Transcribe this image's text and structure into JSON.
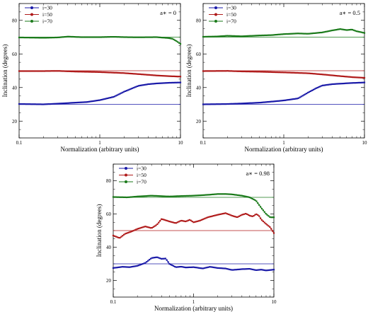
{
  "chart_data": [
    {
      "type": "line",
      "xscale": "log",
      "xlim": [
        0.1,
        10
      ],
      "ylim": [
        10,
        90
      ],
      "xticks": [
        "0.1",
        "1",
        "10"
      ],
      "yticks": [
        "20",
        "40",
        "60",
        "80"
      ],
      "xlabel": "Normalization (arbitrary units)",
      "ylabel": "Inclination (degrees)",
      "annotation": "a∗ = 0",
      "legend_position": "top-left",
      "series": [
        {
          "name": "i=30",
          "color": "#1a1aa8",
          "true_value": 30,
          "x": [
            0.1,
            0.2,
            0.3,
            0.5,
            0.7,
            1.0,
            1.5,
            2.0,
            3.0,
            4.0,
            5.0,
            7.0,
            10.0
          ],
          "y": [
            30.2,
            30.0,
            30.4,
            31.0,
            31.4,
            32.5,
            34.5,
            37.5,
            41.0,
            42.0,
            42.4,
            42.8,
            43.0
          ]
        },
        {
          "name": "i=50",
          "color": "#b01a1a",
          "true_value": 50,
          "x": [
            0.1,
            0.2,
            0.3,
            0.5,
            1.0,
            2.0,
            3.0,
            5.0,
            7.0,
            10.0
          ],
          "y": [
            49.8,
            49.8,
            49.9,
            49.5,
            49.2,
            48.6,
            48.0,
            47.2,
            46.8,
            46.5
          ]
        },
        {
          "name": "i=70",
          "color": "#1a7a1a",
          "true_value": 70,
          "x": [
            0.1,
            0.15,
            0.2,
            0.3,
            0.4,
            0.6,
            1.0,
            1.5,
            2.0,
            3.0,
            5.0,
            7.0,
            8.0,
            9.0,
            10.0
          ],
          "y": [
            69.8,
            69.7,
            69.6,
            69.8,
            70.3,
            70.0,
            70.0,
            70.2,
            70.0,
            69.9,
            70.0,
            69.5,
            69.0,
            67.5,
            66.0
          ]
        }
      ]
    },
    {
      "type": "line",
      "xscale": "log",
      "xlim": [
        0.1,
        10
      ],
      "ylim": [
        10,
        90
      ],
      "xticks": [
        "0.1",
        "1",
        "10"
      ],
      "yticks": [
        "20",
        "40",
        "60",
        "80"
      ],
      "xlabel": "Normalization (arbitrary units)",
      "ylabel": "Inclination (degrees)",
      "annotation": "a∗ = 0.5",
      "legend_position": "top-left",
      "series": [
        {
          "name": "i=30",
          "color": "#1a1aa8",
          "true_value": 30,
          "x": [
            0.1,
            0.2,
            0.3,
            0.5,
            0.7,
            1.0,
            1.5,
            2.0,
            2.5,
            3.0,
            4.0,
            5.0,
            7.0,
            10.0
          ],
          "y": [
            30.0,
            30.2,
            30.5,
            31.0,
            31.6,
            32.3,
            33.5,
            37.0,
            39.5,
            41.2,
            42.0,
            42.3,
            42.7,
            43.0
          ]
        },
        {
          "name": "i=50",
          "color": "#b01a1a",
          "true_value": 50,
          "x": [
            0.1,
            0.2,
            0.3,
            0.5,
            1.0,
            2.0,
            3.0,
            5.0,
            7.0,
            10.0
          ],
          "y": [
            49.8,
            49.9,
            49.6,
            49.4,
            49.0,
            48.5,
            47.8,
            46.8,
            46.2,
            45.8
          ]
        },
        {
          "name": "i=70",
          "color": "#1a7a1a",
          "true_value": 70,
          "x": [
            0.1,
            0.15,
            0.2,
            0.3,
            0.5,
            0.7,
            1.0,
            1.5,
            2.0,
            3.0,
            4.0,
            5.0,
            6.0,
            7.0,
            8.0,
            10.0
          ],
          "y": [
            70.2,
            70.4,
            70.8,
            70.5,
            71.0,
            71.2,
            71.8,
            72.2,
            72.0,
            72.8,
            74.0,
            74.8,
            74.2,
            74.5,
            73.5,
            72.5
          ]
        }
      ]
    },
    {
      "type": "line",
      "xscale": "log",
      "xlim": [
        0.1,
        10
      ],
      "ylim": [
        10,
        90
      ],
      "xticks": [
        "0.1",
        "1",
        "10"
      ],
      "yticks": [
        "20",
        "40",
        "60",
        "80"
      ],
      "xlabel": "Normalization (arbitrary units)",
      "ylabel": "Inclination (degrees)",
      "annotation": "a∗ = 0.98",
      "legend_position": "top-left",
      "series": [
        {
          "name": "i=30",
          "color": "#1a1aa8",
          "true_value": 30,
          "x": [
            0.1,
            0.13,
            0.16,
            0.2,
            0.25,
            0.3,
            0.35,
            0.4,
            0.45,
            0.5,
            0.6,
            0.7,
            0.8,
            1.0,
            1.3,
            1.6,
            2.0,
            2.5,
            3.0,
            4.0,
            5.0,
            6.0,
            7.0,
            8.0,
            9.0,
            10.0
          ],
          "y": [
            27.5,
            28.2,
            28.0,
            28.8,
            30.5,
            33.5,
            34.0,
            33.0,
            33.2,
            30.0,
            28.0,
            28.3,
            27.8,
            28.0,
            27.2,
            28.2,
            27.5,
            27.2,
            26.3,
            26.8,
            27.0,
            26.2,
            26.5,
            26.0,
            26.3,
            26.5
          ]
        },
        {
          "name": "i=50",
          "color": "#b01a1a",
          "true_value": 50,
          "x": [
            0.1,
            0.12,
            0.14,
            0.17,
            0.2,
            0.25,
            0.3,
            0.35,
            0.4,
            0.5,
            0.6,
            0.7,
            0.8,
            0.9,
            1.0,
            1.2,
            1.5,
            2.0,
            2.5,
            3.0,
            3.5,
            4.0,
            4.5,
            5.0,
            5.5,
            6.0,
            6.5,
            7.0,
            8.0,
            9.0,
            10.0
          ],
          "y": [
            47.0,
            45.5,
            48.0,
            49.5,
            51.0,
            52.5,
            51.5,
            53.5,
            57.0,
            55.5,
            54.5,
            56.0,
            55.5,
            56.5,
            55.0,
            56.0,
            58.0,
            59.5,
            60.5,
            59.0,
            58.0,
            59.5,
            60.2,
            59.0,
            58.5,
            60.0,
            59.0,
            56.5,
            54.0,
            52.0,
            48.5
          ]
        },
        {
          "name": "i=70",
          "color": "#1a7a1a",
          "true_value": 70,
          "x": [
            0.1,
            0.15,
            0.2,
            0.3,
            0.5,
            0.7,
            1.0,
            1.5,
            2.0,
            2.5,
            3.0,
            4.0,
            5.0,
            6.0,
            7.0,
            8.0,
            9.0,
            10.0
          ],
          "y": [
            70.2,
            70.0,
            70.5,
            71.0,
            70.5,
            70.8,
            71.0,
            71.5,
            72.0,
            72.0,
            71.8,
            71.0,
            70.0,
            68.0,
            63.5,
            60.0,
            58.0,
            58.0
          ]
        }
      ]
    }
  ]
}
